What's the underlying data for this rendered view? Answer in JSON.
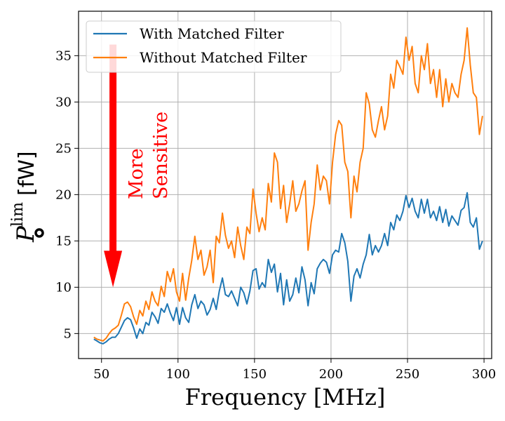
{
  "chart_data": {
    "type": "line",
    "xlabel": "Frequency [MHz]",
    "ylabel": {
      "symbol": "P",
      "superscript": "lim",
      "unit": "[fW]"
    },
    "xlim": [
      35,
      305
    ],
    "ylim": [
      2.3,
      39.8
    ],
    "xticks": [
      50,
      100,
      150,
      200,
      250,
      300
    ],
    "yticks": [
      5,
      10,
      15,
      20,
      25,
      30,
      35
    ],
    "grid": true,
    "legend_position": "top-left",
    "annotation": {
      "lines": [
        "More",
        "Sensitive"
      ],
      "color": "#ff0000",
      "arrow_from_y": 36.2,
      "arrow_to_y": 10.0,
      "arrow_x": 57.5
    },
    "series": [
      {
        "name": "With Matched Filter",
        "color": "#1f77b4",
        "points": [
          [
            45,
            4.4
          ],
          [
            47,
            4.2
          ],
          [
            49,
            4.0
          ],
          [
            51,
            3.9
          ],
          [
            53,
            4.1
          ],
          [
            55,
            4.4
          ],
          [
            57,
            4.6
          ],
          [
            59,
            4.6
          ],
          [
            61,
            5.0
          ],
          [
            63,
            5.7
          ],
          [
            65,
            6.4
          ],
          [
            67,
            6.7
          ],
          [
            69,
            6.5
          ],
          [
            71,
            5.6
          ],
          [
            73,
            4.5
          ],
          [
            75,
            5.5
          ],
          [
            77,
            5.0
          ],
          [
            79,
            6.2
          ],
          [
            81,
            5.9
          ],
          [
            83,
            7.3
          ],
          [
            85,
            6.8
          ],
          [
            87,
            6.1
          ],
          [
            89,
            7.7
          ],
          [
            91,
            7.3
          ],
          [
            93,
            8.2
          ],
          [
            95,
            7.2
          ],
          [
            97,
            6.4
          ],
          [
            99,
            7.8
          ],
          [
            101,
            6.0
          ],
          [
            103,
            7.8
          ],
          [
            105,
            6.7
          ],
          [
            107,
            6.2
          ],
          [
            109,
            8.1
          ],
          [
            111,
            9.2
          ],
          [
            113,
            7.7
          ],
          [
            115,
            8.5
          ],
          [
            117,
            8.1
          ],
          [
            119,
            7.0
          ],
          [
            121,
            7.6
          ],
          [
            123,
            8.8
          ],
          [
            125,
            7.6
          ],
          [
            127,
            9.6
          ],
          [
            129,
            11.0
          ],
          [
            131,
            9.2
          ],
          [
            133,
            9.0
          ],
          [
            135,
            9.6
          ],
          [
            137,
            8.8
          ],
          [
            139,
            8.0
          ],
          [
            141,
            10.0
          ],
          [
            143,
            9.4
          ],
          [
            145,
            8.2
          ],
          [
            147,
            9.6
          ],
          [
            149,
            11.8
          ],
          [
            151,
            12.0
          ],
          [
            153,
            9.8
          ],
          [
            155,
            10.5
          ],
          [
            157,
            10.0
          ],
          [
            159,
            13.0
          ],
          [
            161,
            11.6
          ],
          [
            163,
            12.5
          ],
          [
            165,
            9.5
          ],
          [
            167,
            11.5
          ],
          [
            169,
            8.1
          ],
          [
            171,
            10.8
          ],
          [
            173,
            8.5
          ],
          [
            175,
            9.2
          ],
          [
            177,
            11.0
          ],
          [
            179,
            9.4
          ],
          [
            181,
            12.2
          ],
          [
            183,
            10.8
          ],
          [
            185,
            8.0
          ],
          [
            187,
            10.5
          ],
          [
            189,
            9.3
          ],
          [
            191,
            12.0
          ],
          [
            193,
            12.6
          ],
          [
            195,
            13.0
          ],
          [
            197,
            12.7
          ],
          [
            199,
            11.5
          ],
          [
            201,
            13.5
          ],
          [
            203,
            14.0
          ],
          [
            205,
            13.8
          ],
          [
            207,
            15.8
          ],
          [
            209,
            14.8
          ],
          [
            211,
            12.8
          ],
          [
            213,
            8.5
          ],
          [
            215,
            11.2
          ],
          [
            217,
            12.0
          ],
          [
            219,
            11.0
          ],
          [
            221,
            12.5
          ],
          [
            223,
            13.5
          ],
          [
            225,
            15.7
          ],
          [
            227,
            13.5
          ],
          [
            229,
            14.5
          ],
          [
            231,
            13.8
          ],
          [
            233,
            14.5
          ],
          [
            235,
            15.8
          ],
          [
            237,
            14.5
          ],
          [
            239,
            17.0
          ],
          [
            241,
            16.2
          ],
          [
            243,
            17.8
          ],
          [
            245,
            17.2
          ],
          [
            247,
            18.2
          ],
          [
            249,
            19.9
          ],
          [
            251,
            18.6
          ],
          [
            253,
            19.6
          ],
          [
            255,
            18.2
          ],
          [
            257,
            17.5
          ],
          [
            259,
            19.5
          ],
          [
            261,
            18.0
          ],
          [
            263,
            19.5
          ],
          [
            265,
            17.5
          ],
          [
            267,
            18.2
          ],
          [
            269,
            17.2
          ],
          [
            271,
            18.7
          ],
          [
            273,
            17.0
          ],
          [
            275,
            18.4
          ],
          [
            277,
            16.6
          ],
          [
            279,
            17.7
          ],
          [
            281,
            17.2
          ],
          [
            283,
            16.7
          ],
          [
            285,
            18.3
          ],
          [
            287,
            18.6
          ],
          [
            289,
            20.2
          ],
          [
            291,
            17.0
          ],
          [
            293,
            16.5
          ],
          [
            295,
            17.5
          ],
          [
            297,
            14.1
          ],
          [
            299,
            15.0
          ]
        ]
      },
      {
        "name": "Without Matched Filter",
        "color": "#ff7f0e",
        "points": [
          [
            45,
            4.6
          ],
          [
            47,
            4.4
          ],
          [
            49,
            4.3
          ],
          [
            51,
            4.2
          ],
          [
            53,
            4.5
          ],
          [
            55,
            5.0
          ],
          [
            57,
            5.4
          ],
          [
            59,
            5.6
          ],
          [
            61,
            5.9
          ],
          [
            63,
            7.0
          ],
          [
            65,
            8.2
          ],
          [
            67,
            8.4
          ],
          [
            69,
            7.9
          ],
          [
            71,
            6.8
          ],
          [
            73,
            6.0
          ],
          [
            75,
            7.5
          ],
          [
            77,
            6.9
          ],
          [
            79,
            8.5
          ],
          [
            81,
            7.6
          ],
          [
            83,
            9.5
          ],
          [
            85,
            8.5
          ],
          [
            87,
            8.0
          ],
          [
            89,
            10.1
          ],
          [
            91,
            9.0
          ],
          [
            93,
            11.7
          ],
          [
            95,
            10.6
          ],
          [
            97,
            12.0
          ],
          [
            99,
            9.5
          ],
          [
            101,
            8.5
          ],
          [
            103,
            11.5
          ],
          [
            105,
            8.6
          ],
          [
            107,
            11.0
          ],
          [
            109,
            12.9
          ],
          [
            111,
            15.5
          ],
          [
            113,
            13.0
          ],
          [
            115,
            14.0
          ],
          [
            117,
            11.3
          ],
          [
            119,
            12.2
          ],
          [
            121,
            14.0
          ],
          [
            123,
            10.5
          ],
          [
            125,
            15.5
          ],
          [
            127,
            14.8
          ],
          [
            129,
            18.0
          ],
          [
            131,
            15.6
          ],
          [
            133,
            14.2
          ],
          [
            135,
            15.0
          ],
          [
            137,
            13.2
          ],
          [
            139,
            16.5
          ],
          [
            141,
            14.5
          ],
          [
            143,
            13.0
          ],
          [
            145,
            16.5
          ],
          [
            147,
            15.8
          ],
          [
            149,
            20.6
          ],
          [
            151,
            18.0
          ],
          [
            153,
            16.0
          ],
          [
            155,
            17.5
          ],
          [
            157,
            16.2
          ],
          [
            159,
            21.2
          ],
          [
            161,
            19.2
          ],
          [
            163,
            24.5
          ],
          [
            165,
            23.5
          ],
          [
            167,
            18.5
          ],
          [
            169,
            21.0
          ],
          [
            171,
            17.0
          ],
          [
            173,
            19.0
          ],
          [
            175,
            21.5
          ],
          [
            177,
            18.2
          ],
          [
            179,
            19.0
          ],
          [
            181,
            20.4
          ],
          [
            183,
            21.5
          ],
          [
            185,
            14.0
          ],
          [
            187,
            17.0
          ],
          [
            189,
            19.0
          ],
          [
            191,
            23.2
          ],
          [
            193,
            20.5
          ],
          [
            195,
            22.0
          ],
          [
            197,
            21.5
          ],
          [
            199,
            19.0
          ],
          [
            201,
            23.5
          ],
          [
            203,
            26.5
          ],
          [
            205,
            28.0
          ],
          [
            207,
            27.5
          ],
          [
            209,
            23.5
          ],
          [
            211,
            22.5
          ],
          [
            213,
            17.5
          ],
          [
            215,
            22.0
          ],
          [
            217,
            20.3
          ],
          [
            219,
            23.5
          ],
          [
            221,
            25.0
          ],
          [
            223,
            31.0
          ],
          [
            225,
            29.8
          ],
          [
            227,
            27.0
          ],
          [
            229,
            26.2
          ],
          [
            231,
            28.0
          ],
          [
            233,
            29.5
          ],
          [
            235,
            27.0
          ],
          [
            237,
            28.5
          ],
          [
            239,
            33.0
          ],
          [
            241,
            31.5
          ],
          [
            243,
            34.5
          ],
          [
            245,
            33.8
          ],
          [
            247,
            33.0
          ],
          [
            249,
            37.0
          ],
          [
            251,
            34.5
          ],
          [
            253,
            36.0
          ],
          [
            255,
            32.0
          ],
          [
            257,
            31.0
          ],
          [
            259,
            35.0
          ],
          [
            261,
            33.5
          ],
          [
            263,
            36.3
          ],
          [
            265,
            32.0
          ],
          [
            267,
            33.5
          ],
          [
            269,
            30.5
          ],
          [
            271,
            33.5
          ],
          [
            273,
            29.5
          ],
          [
            275,
            32.5
          ],
          [
            277,
            30.0
          ],
          [
            279,
            32.0
          ],
          [
            281,
            31.0
          ],
          [
            283,
            30.5
          ],
          [
            285,
            33.0
          ],
          [
            287,
            34.5
          ],
          [
            289,
            38.0
          ],
          [
            291,
            34.0
          ],
          [
            293,
            31.0
          ],
          [
            295,
            30.5
          ],
          [
            297,
            26.5
          ],
          [
            299,
            28.5
          ]
        ]
      }
    ]
  }
}
